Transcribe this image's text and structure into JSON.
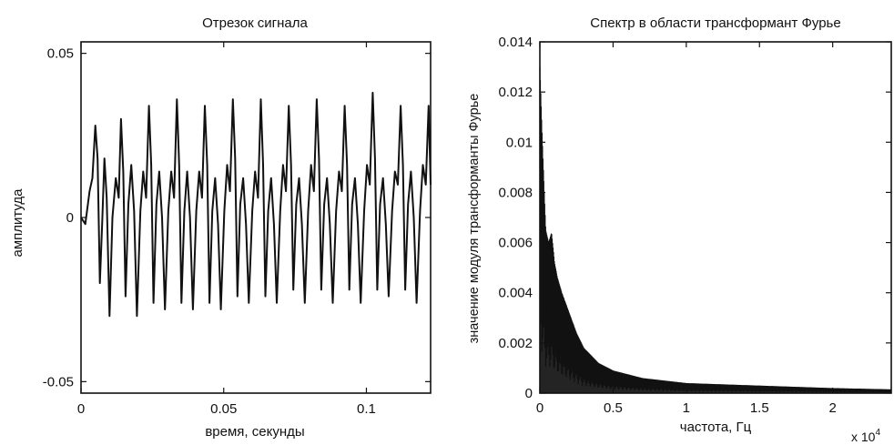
{
  "chart_data": [
    {
      "type": "line",
      "title": "Отрезок сигнала",
      "xlabel": "время, секунды",
      "ylabel": "амплитуда",
      "xlim": [
        0,
        0.1225
      ],
      "ylim": [
        -0.0535,
        0.0535
      ],
      "x_ticks": [
        0,
        0.05,
        0.1
      ],
      "x_tick_labels": [
        "0",
        "0.05",
        "0.1"
      ],
      "y_ticks": [
        -0.05,
        0,
        0.05
      ],
      "y_tick_labels": [
        "-0.05",
        "0",
        "0.05"
      ],
      "grid": false,
      "series": [
        {
          "color": "#111111",
          "description_points": [
            [
              0.0,
              0.0
            ],
            [
              0.0015,
              -0.002
            ],
            [
              0.003,
              0.008
            ],
            [
              0.004,
              0.012
            ],
            [
              0.005,
              0.028
            ],
            [
              0.0058,
              0.018
            ],
            [
              0.0066,
              -0.02
            ],
            [
              0.0074,
              -0.002
            ],
            [
              0.0082,
              0.018
            ],
            [
              0.009,
              0.006
            ],
            [
              0.01,
              -0.03
            ],
            [
              0.011,
              0.0
            ],
            [
              0.0122,
              0.012
            ],
            [
              0.0132,
              0.006
            ],
            [
              0.014,
              0.03
            ],
            [
              0.0148,
              0.014
            ],
            [
              0.0156,
              -0.024
            ],
            [
              0.0166,
              0.004
            ],
            [
              0.0176,
              0.016
            ],
            [
              0.0186,
              0.002
            ],
            [
              0.0196,
              -0.03
            ],
            [
              0.0208,
              0.002
            ],
            [
              0.0218,
              0.014
            ],
            [
              0.0228,
              0.006
            ],
            [
              0.0238,
              0.034
            ],
            [
              0.0246,
              0.016
            ],
            [
              0.0254,
              -0.026
            ],
            [
              0.0264,
              0.004
            ],
            [
              0.0274,
              0.014
            ],
            [
              0.0284,
              0.0
            ],
            [
              0.0294,
              -0.028
            ],
            [
              0.0306,
              0.002
            ],
            [
              0.0316,
              0.014
            ],
            [
              0.0326,
              0.006
            ],
            [
              0.0336,
              0.036
            ],
            [
              0.0344,
              0.016
            ],
            [
              0.0352,
              -0.026
            ],
            [
              0.0362,
              0.002
            ],
            [
              0.0372,
              0.014
            ],
            [
              0.0382,
              0.0
            ],
            [
              0.0392,
              -0.028
            ],
            [
              0.0404,
              0.002
            ],
            [
              0.0414,
              0.014
            ],
            [
              0.0424,
              0.006
            ],
            [
              0.0434,
              0.034
            ],
            [
              0.0442,
              0.016
            ],
            [
              0.045,
              -0.026
            ],
            [
              0.046,
              0.002
            ],
            [
              0.047,
              0.012
            ],
            [
              0.048,
              -0.002
            ],
            [
              0.049,
              -0.028
            ],
            [
              0.0502,
              0.002
            ],
            [
              0.0512,
              0.016
            ],
            [
              0.0522,
              0.008
            ],
            [
              0.0532,
              0.036
            ],
            [
              0.054,
              0.018
            ],
            [
              0.0548,
              -0.024
            ],
            [
              0.0558,
              0.004
            ],
            [
              0.0568,
              0.012
            ],
            [
              0.0578,
              -0.002
            ],
            [
              0.0588,
              -0.026
            ],
            [
              0.06,
              0.002
            ],
            [
              0.061,
              0.014
            ],
            [
              0.062,
              0.006
            ],
            [
              0.063,
              0.036
            ],
            [
              0.0638,
              0.016
            ],
            [
              0.0646,
              -0.024
            ],
            [
              0.0656,
              0.002
            ],
            [
              0.0666,
              0.012
            ],
            [
              0.0676,
              -0.002
            ],
            [
              0.0686,
              -0.026
            ],
            [
              0.0698,
              0.002
            ],
            [
              0.0708,
              0.016
            ],
            [
              0.0718,
              0.008
            ],
            [
              0.0728,
              0.034
            ],
            [
              0.0736,
              0.016
            ],
            [
              0.0744,
              -0.022
            ],
            [
              0.0754,
              0.004
            ],
            [
              0.0764,
              0.012
            ],
            [
              0.0774,
              -0.002
            ],
            [
              0.0784,
              -0.026
            ],
            [
              0.0796,
              0.002
            ],
            [
              0.0806,
              0.016
            ],
            [
              0.0816,
              0.008
            ],
            [
              0.0826,
              0.036
            ],
            [
              0.0834,
              0.018
            ],
            [
              0.0842,
              -0.022
            ],
            [
              0.0852,
              0.004
            ],
            [
              0.0862,
              0.012
            ],
            [
              0.0872,
              -0.002
            ],
            [
              0.0882,
              -0.026
            ],
            [
              0.0894,
              0.002
            ],
            [
              0.0904,
              0.014
            ],
            [
              0.0914,
              0.008
            ],
            [
              0.0924,
              0.034
            ],
            [
              0.0932,
              0.016
            ],
            [
              0.094,
              -0.022
            ],
            [
              0.095,
              0.004
            ],
            [
              0.096,
              0.012
            ],
            [
              0.097,
              -0.002
            ],
            [
              0.098,
              -0.026
            ],
            [
              0.0992,
              0.002
            ],
            [
              0.1002,
              0.016
            ],
            [
              0.1012,
              0.01
            ],
            [
              0.1022,
              0.038
            ],
            [
              0.103,
              0.018
            ],
            [
              0.1038,
              -0.022
            ],
            [
              0.1048,
              0.004
            ],
            [
              0.1058,
              0.012
            ],
            [
              0.1068,
              -0.002
            ],
            [
              0.1078,
              -0.024
            ],
            [
              0.109,
              0.002
            ],
            [
              0.11,
              0.014
            ],
            [
              0.111,
              0.01
            ],
            [
              0.112,
              0.034
            ],
            [
              0.1128,
              0.016
            ],
            [
              0.1136,
              -0.022
            ],
            [
              0.1146,
              0.004
            ],
            [
              0.1156,
              0.014
            ],
            [
              0.1166,
              0.0
            ],
            [
              0.1176,
              -0.026
            ],
            [
              0.1188,
              0.002
            ],
            [
              0.1198,
              0.016
            ],
            [
              0.1208,
              0.01
            ],
            [
              0.1218,
              0.034
            ],
            [
              0.1225,
              0.01
            ]
          ]
        }
      ]
    },
    {
      "type": "line",
      "title": "Спектр в области трансформант Фурье",
      "xlabel": "частота, Гц",
      "ylabel": "значение модуля трансформанты Фурье",
      "x_scale_label": "x 10",
      "x_scale_exponent": "4",
      "xlim": [
        0,
        2.4
      ],
      "ylim": [
        0,
        0.014
      ],
      "x_ticks": [
        0,
        0.5,
        1,
        1.5,
        2
      ],
      "x_tick_labels": [
        "0",
        "0.5",
        "1",
        "1.5",
        "2"
      ],
      "y_ticks": [
        0,
        0.002,
        0.004,
        0.006,
        0.008,
        0.01,
        0.012,
        0.014
      ],
      "y_tick_labels": [
        "0",
        "0.002",
        "0.004",
        "0.006",
        "0.008",
        "0.01",
        "0.012",
        "0.014"
      ],
      "grid": false,
      "series": [
        {
          "color": "#111111",
          "envelope_points": [
            [
              0.0,
              0.013
            ],
            [
              0.02,
              0.0095
            ],
            [
              0.04,
              0.0065
            ],
            [
              0.06,
              0.006
            ],
            [
              0.08,
              0.0064
            ],
            [
              0.1,
              0.0052
            ],
            [
              0.12,
              0.0046
            ],
            [
              0.15,
              0.004
            ],
            [
              0.2,
              0.0032
            ],
            [
              0.25,
              0.0024
            ],
            [
              0.3,
              0.0018
            ],
            [
              0.4,
              0.0012
            ],
            [
              0.5,
              0.0009
            ],
            [
              0.7,
              0.0006
            ],
            [
              1.0,
              0.0004
            ],
            [
              1.5,
              0.0003
            ],
            [
              2.0,
              0.0002
            ],
            [
              2.4,
              0.00015
            ]
          ]
        }
      ]
    }
  ]
}
